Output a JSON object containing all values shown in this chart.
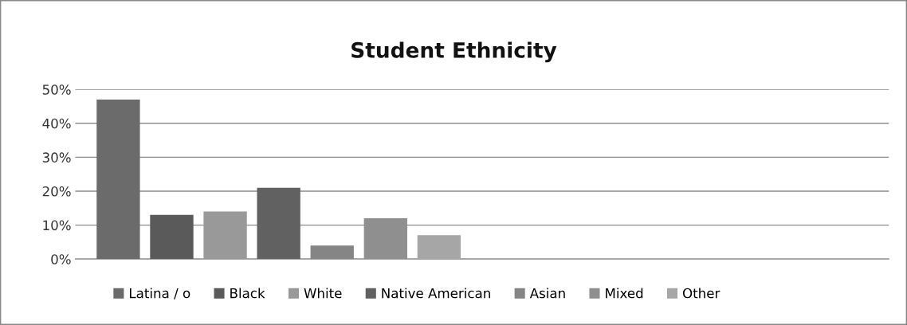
{
  "chart_data": {
    "type": "bar",
    "title": "Student Ethnicity",
    "categories": [
      null,
      null
    ],
    "series": [
      {
        "name": "Latina / o",
        "color": "#6b6b6b",
        "values": [
          47,
          null
        ]
      },
      {
        "name": "Black",
        "color": "#5a5a5a",
        "values": [
          13,
          null
        ]
      },
      {
        "name": "White",
        "color": "#999999",
        "values": [
          14,
          null
        ]
      },
      {
        "name": "Native American",
        "color": "#616161",
        "values": [
          21,
          null
        ]
      },
      {
        "name": "Asian",
        "color": "#858585",
        "values": [
          4,
          null
        ]
      },
      {
        "name": "Mixed",
        "color": "#8f8f8f",
        "values": [
          12,
          null
        ]
      },
      {
        "name": "Other",
        "color": "#a6a6a6",
        "values": [
          7,
          null
        ]
      }
    ],
    "ylim": [
      0,
      50
    ],
    "yticks": [
      {
        "value": 0,
        "label": "0%"
      },
      {
        "value": 10,
        "label": "10%"
      },
      {
        "value": 20,
        "label": "20%"
      },
      {
        "value": 30,
        "label": "30%"
      },
      {
        "value": 40,
        "label": "40%"
      },
      {
        "value": 50,
        "label": "50%"
      }
    ],
    "grid": "y",
    "legend": "bottom"
  }
}
